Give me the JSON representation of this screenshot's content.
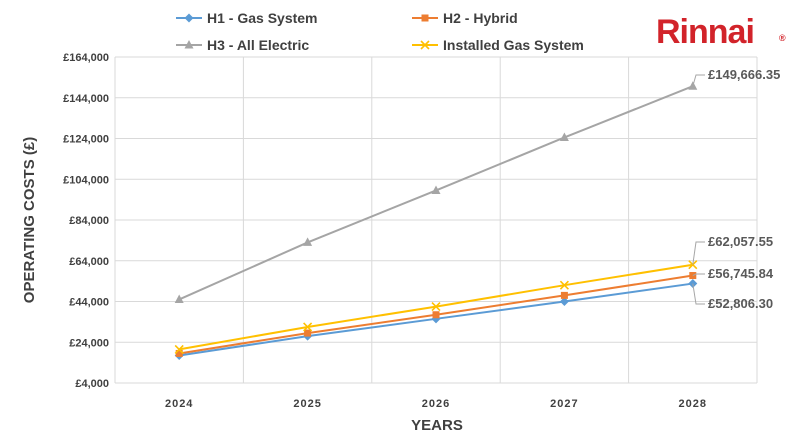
{
  "brand": {
    "name": "Rinnai",
    "mark": "®",
    "color": "#d2232a"
  },
  "chart_data": {
    "type": "line",
    "title": "",
    "xlabel": "YEARS",
    "ylabel": "OPERATING COSTS (£)",
    "categories": [
      "2024",
      "2025",
      "2026",
      "2027",
      "2028"
    ],
    "ylim": [
      4000,
      164000
    ],
    "yticks": [
      4000,
      24000,
      44000,
      64000,
      84000,
      104000,
      124000,
      144000,
      164000
    ],
    "ytick_labels": [
      "£4,000",
      "£24,000",
      "£44,000",
      "£64,000",
      "£84,000",
      "£104,000",
      "£124,000",
      "£144,000",
      "£164,000"
    ],
    "grid": true,
    "legend_position": "top",
    "series": [
      {
        "name": "H1 - Gas System",
        "color": "#5b9bd5",
        "marker": "diamond",
        "values": [
          17500,
          27000,
          35500,
          44000,
          52806.3
        ]
      },
      {
        "name": "H2 - Hybrid",
        "color": "#ed7d31",
        "marker": "square",
        "values": [
          18500,
          28500,
          37500,
          47000,
          56745.84
        ]
      },
      {
        "name": "H3 - All Electric",
        "color": "#a5a5a5",
        "marker": "triangle",
        "values": [
          45000,
          73000,
          98500,
          124500,
          149666.35
        ]
      },
      {
        "name": "Installed Gas System",
        "color": "#ffc000",
        "marker": "x",
        "values": [
          20500,
          31500,
          41500,
          52000,
          62057.55
        ]
      }
    ],
    "annotations": [
      {
        "series": "H3 - All Electric",
        "text": "£149,666.35"
      },
      {
        "series": "Installed Gas System",
        "text": "£62,057.55"
      },
      {
        "series": "H2 - Hybrid",
        "text": "£56,745.84"
      },
      {
        "series": "H1 - Gas System",
        "text": "£52,806.30"
      }
    ]
  }
}
